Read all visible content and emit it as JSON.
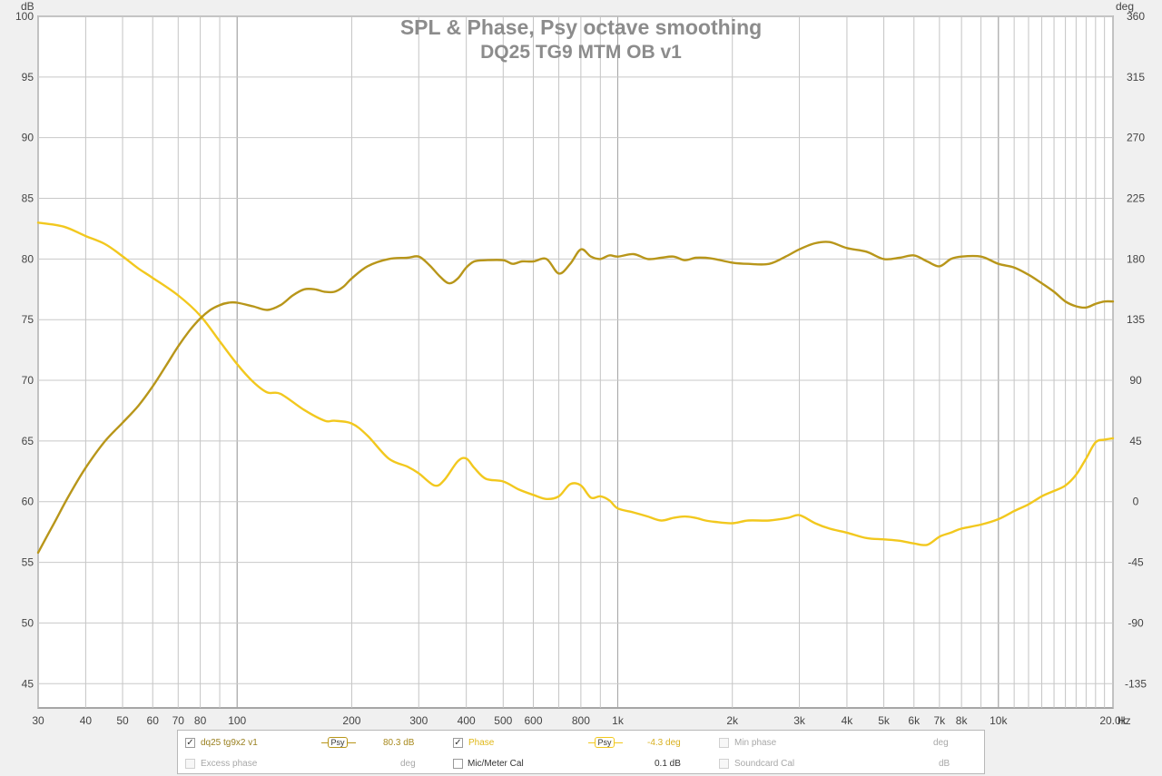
{
  "chart_data": {
    "type": "line",
    "title": "SPL & Phase, Psy octave smoothing",
    "subtitle": "DQ25 TG9 MTM OB v1",
    "y_left_unit": "dB",
    "y_right_unit": "deg",
    "x_unit": "Hz",
    "xlim": [
      30,
      20000
    ],
    "x_scale": "log",
    "ylim_left": [
      43,
      100
    ],
    "ylim_right": [
      -153,
      360
    ],
    "grid": true,
    "x_ticks": [
      "30",
      "40",
      "50",
      "60",
      "70",
      "80",
      "100",
      "200",
      "300",
      "400",
      "500",
      "600",
      "800",
      "1k",
      "2k",
      "3k",
      "4k",
      "5k",
      "6k",
      "7k",
      "8k",
      "10k",
      "20.0k"
    ],
    "x_tick_values": [
      30,
      40,
      50,
      60,
      70,
      80,
      100,
      200,
      300,
      400,
      500,
      600,
      800,
      1000,
      2000,
      3000,
      4000,
      5000,
      6000,
      7000,
      8000,
      10000,
      20000
    ],
    "y_left_ticks": [
      "100",
      "95",
      "90",
      "85",
      "80",
      "75",
      "70",
      "65",
      "60",
      "55",
      "50",
      "45"
    ],
    "y_left_tick_values": [
      100,
      95,
      90,
      85,
      80,
      75,
      70,
      65,
      60,
      55,
      50,
      45
    ],
    "y_right_ticks": [
      "360",
      "315",
      "270",
      "225",
      "180",
      "135",
      "90",
      "45",
      "0",
      "-45",
      "-90",
      "-135"
    ],
    "y_right_tick_values": [
      360,
      315,
      270,
      225,
      180,
      135,
      90,
      45,
      0,
      -45,
      -90,
      -135
    ],
    "series": [
      {
        "name": "dq25 tg9x2 v1",
        "axis": "left",
        "color": "#b8961a",
        "x": [
          30,
          33,
          36,
          40,
          45,
          50,
          55,
          60,
          65,
          70,
          75,
          80,
          85,
          90,
          95,
          100,
          110,
          120,
          130,
          140,
          150,
          160,
          170,
          180,
          190,
          200,
          220,
          250,
          280,
          300,
          320,
          340,
          360,
          380,
          400,
          420,
          450,
          500,
          530,
          560,
          600,
          650,
          700,
          750,
          800,
          850,
          900,
          950,
          1000,
          1100,
          1200,
          1300,
          1400,
          1500,
          1600,
          1700,
          1800,
          2000,
          2200,
          2500,
          2800,
          3000,
          3300,
          3600,
          4000,
          4500,
          5000,
          5500,
          6000,
          6500,
          7000,
          7500,
          8000,
          9000,
          10000,
          11000,
          12000,
          13000,
          14000,
          15000,
          16000,
          17000,
          18000,
          19000,
          20000
        ],
        "values": [
          55.8,
          58.2,
          60.4,
          62.8,
          65.0,
          66.5,
          67.9,
          69.5,
          71.2,
          72.8,
          74.1,
          75.1,
          75.8,
          76.2,
          76.4,
          76.4,
          76.1,
          75.8,
          76.2,
          77.0,
          77.5,
          77.5,
          77.3,
          77.3,
          77.7,
          78.4,
          79.4,
          80.0,
          80.1,
          80.2,
          79.5,
          78.6,
          78.0,
          78.4,
          79.3,
          79.8,
          79.9,
          79.9,
          79.6,
          79.8,
          79.8,
          80.0,
          78.8,
          79.6,
          80.8,
          80.2,
          80.0,
          80.3,
          80.2,
          80.4,
          80.0,
          80.1,
          80.2,
          79.9,
          80.1,
          80.1,
          80.0,
          79.7,
          79.6,
          79.6,
          80.3,
          80.8,
          81.3,
          81.4,
          80.9,
          80.6,
          80.0,
          80.1,
          80.3,
          79.8,
          79.4,
          80.0,
          80.2,
          80.2,
          79.6,
          79.3,
          78.7,
          78.0,
          77.3,
          76.5,
          76.1,
          76.0,
          76.3,
          76.5,
          76.5
        ]
      },
      {
        "name": "Phase",
        "axis": "right",
        "color": "#f2c81e",
        "x": [
          30,
          35,
          40,
          45,
          50,
          55,
          60,
          70,
          80,
          90,
          100,
          110,
          120,
          130,
          150,
          170,
          180,
          200,
          220,
          250,
          280,
          300,
          330,
          350,
          380,
          400,
          420,
          450,
          500,
          550,
          600,
          650,
          700,
          750,
          800,
          850,
          900,
          950,
          1000,
          1100,
          1200,
          1300,
          1400,
          1500,
          1600,
          1700,
          1800,
          2000,
          2200,
          2500,
          2800,
          3000,
          3300,
          3600,
          4000,
          4500,
          5000,
          5500,
          6000,
          6500,
          7000,
          7500,
          8000,
          9000,
          10000,
          11000,
          12000,
          13000,
          14000,
          15000,
          16000,
          17000,
          18000,
          19000,
          20000
        ],
        "values": [
          207,
          204,
          197,
          191,
          182,
          173,
          166,
          153,
          138,
          119,
          102,
          89,
          81,
          80,
          68,
          60,
          60,
          58,
          49,
          32,
          26,
          21,
          12,
          16,
          30,
          32,
          25,
          17,
          15,
          9,
          5,
          2,
          4,
          13,
          12,
          3,
          4,
          1,
          -5,
          -8,
          -11,
          -14,
          -12,
          -11,
          -12,
          -14,
          -15,
          -16,
          -14,
          -14,
          -12,
          -10,
          -16,
          -20,
          -23,
          -27,
          -28,
          -29,
          -31,
          -32,
          -26,
          -23,
          -20,
          -17,
          -13,
          -7,
          -2,
          4,
          8,
          12,
          20,
          32,
          44,
          46,
          47
        ]
      }
    ]
  },
  "legend": {
    "row1": [
      {
        "type": "check",
        "checked": true,
        "label": "dq25 tg9x2 v1",
        "enabled": true,
        "color": "#9a8020"
      },
      {
        "type": "psy",
        "label": "Psy",
        "color": "#b8961a"
      },
      {
        "type": "value",
        "value": "80.3 dB",
        "color": "#a88a1e"
      },
      {
        "type": "check",
        "checked": true,
        "label": "Phase",
        "enabled": true,
        "color": "#e0b818"
      },
      {
        "type": "psy",
        "label": "Psy",
        "color": "#f2c81e"
      },
      {
        "type": "value",
        "value": "-4.3 deg",
        "color": "#d8b020"
      },
      {
        "type": "check",
        "checked": false,
        "label": "Min phase",
        "enabled": false
      },
      {
        "type": "unit",
        "value": "deg"
      }
    ],
    "row2": [
      {
        "type": "check",
        "checked": false,
        "label": "Excess phase",
        "enabled": false
      },
      {
        "type": "unit",
        "value": "deg"
      },
      {
        "type": "check",
        "checked": false,
        "label": "Mic/Meter Cal",
        "enabled": true,
        "color": "#333333"
      },
      {
        "type": "value",
        "value": "0.1 dB",
        "color": "#333333"
      },
      {
        "type": "check",
        "checked": false,
        "label": "Soundcard Cal",
        "enabled": false
      },
      {
        "type": "unit",
        "value": "dB"
      }
    ]
  }
}
